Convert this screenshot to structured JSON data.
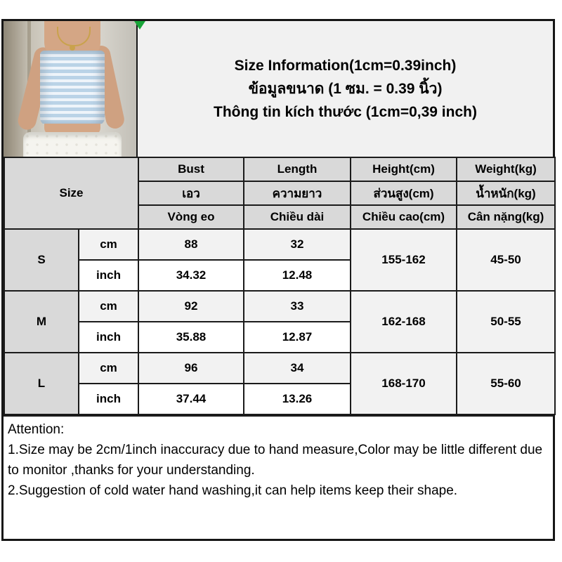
{
  "header": {
    "title_en": "Size Information(1cm=0.39inch)",
    "title_th": "ข้อมูลขนาด (1 ซม. = 0.39 นิ้ว)",
    "title_vi": "Thông tin kích thước (1cm=0,39 inch)"
  },
  "photo": {
    "description": "model wearing light blue striped tube top and white shorts"
  },
  "table": {
    "size_label": "Size",
    "columns_en": [
      "Bust",
      "Length",
      "Height(cm)",
      "Weight(kg)"
    ],
    "columns_th": [
      "เอว",
      "ความยาว",
      "ส่วนสูง(cm)",
      "น้ำหนัก(kg)"
    ],
    "columns_vi": [
      "Vòng eo",
      "Chiều dài",
      "Chiều cao(cm)",
      "Cân nặng(kg)"
    ],
    "unit_labels": {
      "cm": "cm",
      "inch": "inch"
    },
    "sizes": [
      {
        "label": "S",
        "cm": {
          "bust": "88",
          "length": "32"
        },
        "inch": {
          "bust": "34.32",
          "length": "12.48"
        },
        "height": "155-162",
        "weight": "45-50"
      },
      {
        "label": "M",
        "cm": {
          "bust": "92",
          "length": "33"
        },
        "inch": {
          "bust": "35.88",
          "length": "12.87"
        },
        "height": "162-168",
        "weight": "50-55"
      },
      {
        "label": "L",
        "cm": {
          "bust": "96",
          "length": "34"
        },
        "inch": {
          "bust": "37.44",
          "length": "13.26"
        },
        "height": "168-170",
        "weight": "55-60"
      }
    ]
  },
  "attention": {
    "heading": "Attention:",
    "note1": "1.Size may be 2cm/1inch inaccuracy due to hand measure,Color may be little different due to monitor ,thanks for your understanding.",
    "note2": "2.Suggestion of cold water hand washing,it can help items keep their shape."
  },
  "colors": {
    "header_gray": "#d9d9d9",
    "row_light_gray": "#f2f2f2",
    "row_white": "#ffffff",
    "title_bg": "#f1f1f1",
    "border": "#1b1b1b",
    "corner_marker_green": "#18a538",
    "top_stripe_blue": "#bad3e7"
  }
}
